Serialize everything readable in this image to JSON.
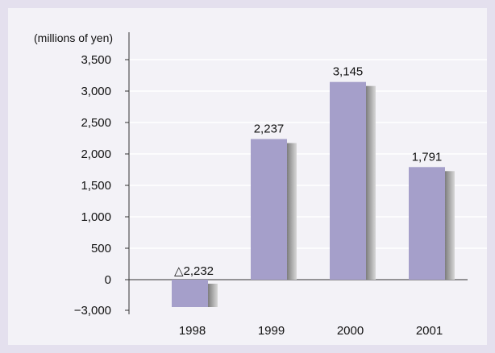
{
  "chart_data": {
    "type": "bar",
    "unit_label": "(millions of yen)",
    "categories": [
      "1998",
      "1999",
      "2000",
      "2001"
    ],
    "values": [
      -2232,
      2237,
      3145,
      1791
    ],
    "value_labels": [
      "△2,232",
      "2,237",
      "3,145",
      "1,791"
    ],
    "yticks": [
      {
        "value": -3000,
        "label": "−3,000"
      },
      {
        "value": 0,
        "label": "0"
      },
      {
        "value": 500,
        "label": "500"
      },
      {
        "value": 1000,
        "label": "1,000"
      },
      {
        "value": 1500,
        "label": "1,500"
      },
      {
        "value": 2000,
        "label": "2,000"
      },
      {
        "value": 2500,
        "label": "2,500"
      },
      {
        "value": 3000,
        "label": "3,000"
      },
      {
        "value": 3500,
        "label": "3,500"
      }
    ],
    "axis_break": "negative axis compressed: −3,000 shown directly below 0",
    "grid": true,
    "colors": {
      "bar": "#a59fca",
      "bar_shadow": "#9a9a9a",
      "grid": "#ffffff",
      "background": "#e4e0ee"
    }
  }
}
